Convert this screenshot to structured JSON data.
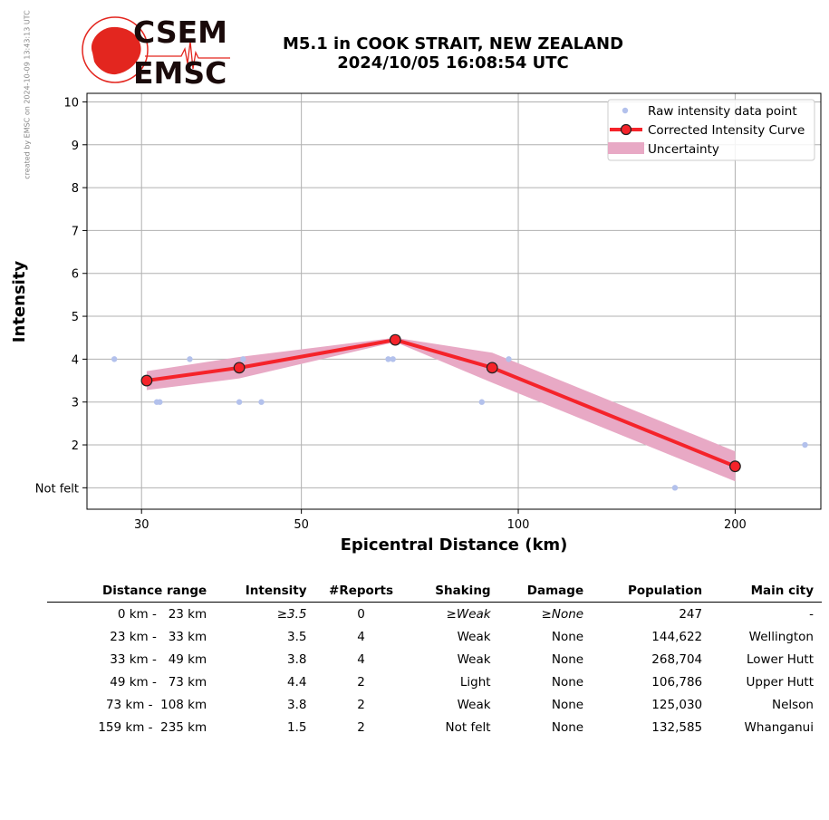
{
  "credit": "created by EMSC on 2024-10-09 13:43:13 UTC",
  "logo": {
    "line1": "CSEM",
    "line2": "EMSC",
    "brand_color": "#e3261f",
    "text_color": "#1a0a0a"
  },
  "title": {
    "line1": "M5.1 in COOK STRAIT, NEW ZEALAND",
    "line2": "2024/10/05 16:08:54 UTC"
  },
  "chart_data": {
    "type": "line",
    "xlabel": "Epicentral Distance (km)",
    "ylabel": "Intensity",
    "x_scale": "log",
    "xlim": [
      25.2,
      263
    ],
    "ylim": [
      0.5,
      10.2
    ],
    "x_ticks": [
      30,
      50,
      100,
      200
    ],
    "y_ticks": [
      1,
      2,
      3,
      4,
      5,
      6,
      7,
      8,
      9,
      10
    ],
    "y_tick_labels": [
      "Not felt",
      "2",
      "3",
      "4",
      "5",
      "6",
      "7",
      "8",
      "9",
      "10"
    ],
    "grid": true,
    "legend_position": "top-right",
    "legend": [
      "Raw intensity data point",
      "Corrected Intensity Curve",
      "Uncertainty"
    ],
    "raw_points": [
      [
        27.5,
        4
      ],
      [
        31.5,
        3
      ],
      [
        31.8,
        3
      ],
      [
        35.0,
        4
      ],
      [
        41.0,
        3
      ],
      [
        41.5,
        4
      ],
      [
        44.0,
        3
      ],
      [
        66.0,
        4
      ],
      [
        67.0,
        4
      ],
      [
        89.0,
        3
      ],
      [
        97.0,
        4
      ],
      [
        165.0,
        1
      ],
      [
        250.0,
        2
      ]
    ],
    "curve": [
      {
        "x": 30.5,
        "y": 3.5
      },
      {
        "x": 41.0,
        "y": 3.8
      },
      {
        "x": 67.5,
        "y": 4.45
      },
      {
        "x": 92.0,
        "y": 3.8
      },
      {
        "x": 200.0,
        "y": 1.5
      }
    ],
    "uncertainty": {
      "upper": [
        3.72,
        4.05,
        4.5,
        4.15,
        1.85
      ],
      "lower": [
        3.28,
        3.55,
        4.4,
        3.45,
        1.15
      ]
    },
    "colors": {
      "raw": "#b3c1ec",
      "curve": "#f5232a",
      "marker_edge": "#222222",
      "band": "#e8a9c5",
      "grid": "#b0b0b0"
    }
  },
  "table": {
    "headers": [
      "Distance range",
      "Intensity",
      "#Reports",
      "Shaking",
      "Damage",
      "Population",
      "Main city"
    ],
    "rows": [
      {
        "range": "  0 km -   23 km",
        "intensity": "≥3.5",
        "reports": "0",
        "shaking": "≥Weak",
        "damage": "≥None",
        "population": "247",
        "city": "-",
        "italic": true
      },
      {
        "range": "23 km -   33 km",
        "intensity": "3.5",
        "reports": "4",
        "shaking": "Weak",
        "damage": "None",
        "population": "144,622",
        "city": "Wellington",
        "italic": false
      },
      {
        "range": "33 km -   49 km",
        "intensity": "3.8",
        "reports": "4",
        "shaking": "Weak",
        "damage": "None",
        "population": "268,704",
        "city": "Lower Hutt",
        "italic": false
      },
      {
        "range": "49 km -   73 km",
        "intensity": "4.4",
        "reports": "2",
        "shaking": "Light",
        "damage": "None",
        "population": "106,786",
        "city": "Upper Hutt",
        "italic": false
      },
      {
        "range": "73 km -  108 km",
        "intensity": "3.8",
        "reports": "2",
        "shaking": "Weak",
        "damage": "None",
        "population": "125,030",
        "city": "Nelson",
        "italic": false
      },
      {
        "range": "159 km -  235 km",
        "intensity": "1.5",
        "reports": "2",
        "shaking": "Not felt",
        "damage": "None",
        "population": "132,585",
        "city": "Whanganui",
        "italic": false
      }
    ]
  }
}
